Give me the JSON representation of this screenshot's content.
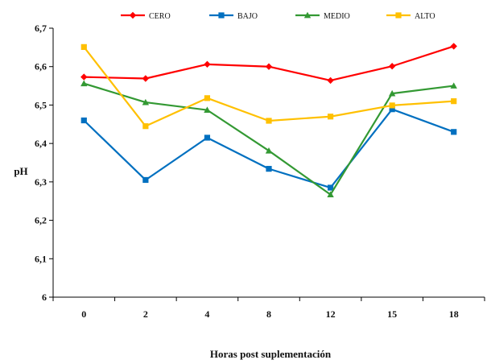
{
  "chart_data": {
    "type": "line",
    "title": "",
    "xlabel": "Horas post suplementación",
    "ylabel": "pH",
    "categories": [
      "0",
      "2",
      "4",
      "8",
      "12",
      "15",
      "18"
    ],
    "ylim": [
      6,
      6.7
    ],
    "yticks": [
      "6",
      "6,1",
      "6,2",
      "6,3",
      "6,4",
      "6,5",
      "6,6",
      "6,7"
    ],
    "grid": false,
    "legend_position": "top",
    "series": [
      {
        "name": "CERO",
        "color": "#ff0000",
        "marker": "diamond",
        "values": [
          6.573,
          6.569,
          6.606,
          6.6,
          6.564,
          6.601,
          6.653
        ]
      },
      {
        "name": "BAJO",
        "color": "#0070c0",
        "marker": "square",
        "values": [
          6.46,
          6.305,
          6.415,
          6.334,
          6.285,
          6.489,
          6.43
        ]
      },
      {
        "name": "MEDIO",
        "color": "#339933",
        "marker": "triangle",
        "values": [
          6.556,
          6.507,
          6.487,
          6.381,
          6.267,
          6.53,
          6.55
        ]
      },
      {
        "name": "ALTO",
        "color": "#ffc000",
        "marker": "square",
        "values": [
          6.651,
          6.445,
          6.518,
          6.459,
          6.47,
          6.499,
          6.51
        ]
      }
    ]
  }
}
